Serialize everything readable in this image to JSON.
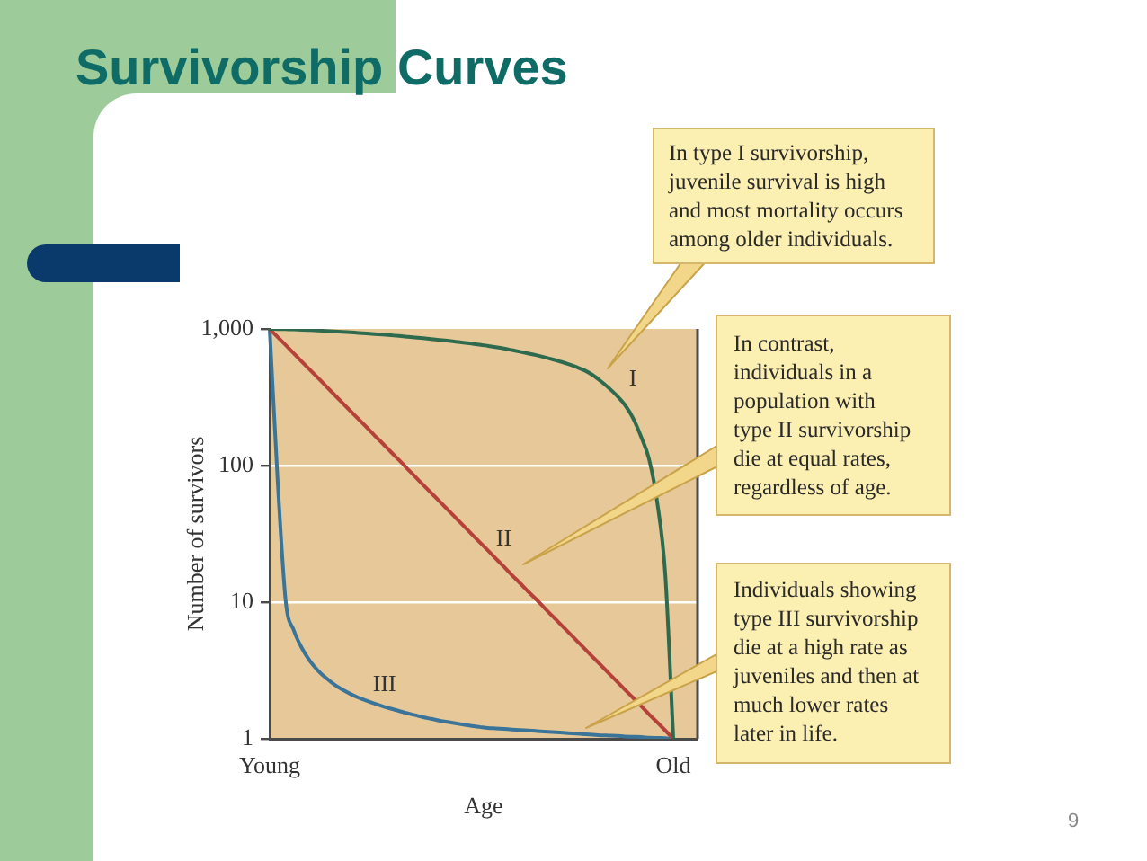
{
  "chart_data": {
    "type": "line",
    "title": "Survivorship Curves",
    "xlabel": "Age",
    "ylabel": "Number of survivors",
    "categories": [
      "Young",
      null,
      null,
      null,
      null,
      null,
      null,
      null,
      null,
      null,
      null,
      null,
      null,
      null,
      null,
      null,
      null,
      null,
      null,
      null,
      null,
      null,
      null,
      null,
      null,
      null,
      null,
      null,
      null,
      null,
      null,
      null,
      null,
      null,
      null,
      null,
      null,
      null,
      null,
      null,
      null,
      null,
      null,
      null,
      null,
      null,
      null,
      null,
      null,
      null,
      "Old",
      null,
      null,
      null
    ],
    "ylim": [
      1,
      1000
    ],
    "yticks": [
      1,
      10,
      100,
      {
        "value": 1000,
        "label": "1,000"
      }
    ],
    "log": "y",
    "grid": "y",
    "marker": "none",
    "line_style": "solid",
    "series": [
      {
        "name": "I",
        "color": "#2e6b4e",
        "values": [
          1000,
          998,
          995,
          991,
          986,
          980,
          974,
          967,
          960,
          952,
          944,
          935,
          926,
          917,
          908,
          898,
          888,
          877,
          866,
          855,
          844,
          832,
          820,
          807,
          794,
          781,
          768,
          752,
          736,
          719,
          700,
          681,
          662,
          643,
          622,
          600,
          577,
          553,
          526,
          497,
          460,
          415,
          370,
          325,
          278,
          223,
          163,
          111,
          54,
          16,
          1,
          null,
          null,
          null
        ]
      },
      {
        "name": "II",
        "color": "#b5413b",
        "values": [
          1000,
          871,
          759,
          661,
          575,
          501,
          437,
          380,
          331,
          288,
          251,
          219,
          191,
          166,
          145,
          126,
          110,
          95.5,
          83.2,
          72.4,
          63.1,
          55,
          47.9,
          41.7,
          36.3,
          31.6,
          27.5,
          24,
          20.9,
          18.2,
          15.8,
          13.8,
          12,
          10.5,
          9.12,
          7.94,
          6.92,
          6.03,
          5.25,
          4.57,
          3.98,
          3.47,
          3.02,
          2.63,
          2.29,
          2,
          1.74,
          1.51,
          1.32,
          1.15,
          1,
          null,
          null,
          null
        ]
      },
      {
        "name": "III",
        "color": "#3b7499",
        "values": [
          1000,
          75,
          10,
          6.2,
          4.6,
          3.7,
          3.15,
          2.78,
          2.5,
          2.29,
          2.13,
          2,
          1.9,
          1.81,
          1.73,
          1.66,
          1.6,
          1.54,
          1.49,
          1.44,
          1.4,
          1.36,
          1.33,
          1.3,
          1.27,
          1.24,
          1.22,
          1.2,
          1.19,
          1.18,
          1.17,
          1.16,
          1.15,
          1.14,
          1.13,
          1.12,
          1.11,
          1.1,
          1.09,
          1.08,
          1.07,
          1.06,
          1.055,
          1.05,
          1.04,
          1.035,
          1.03,
          1.02,
          1.015,
          1.01,
          1,
          null,
          null,
          null
        ]
      }
    ],
    "annotations": [
      "In type I survivorship,\njuvenile survival is high\nand most mortality occurs\namong older individuals.",
      "In contrast,\nindividuals in a\npopulation with\ntype II survivorship\ndie at equal rates,\nregardless of age.",
      "Individuals showing\ntype III survivorship\ndie at a high rate as\njuveniles and then at\nmuch lower rates\nlater in life.",
      "9"
    ]
  }
}
